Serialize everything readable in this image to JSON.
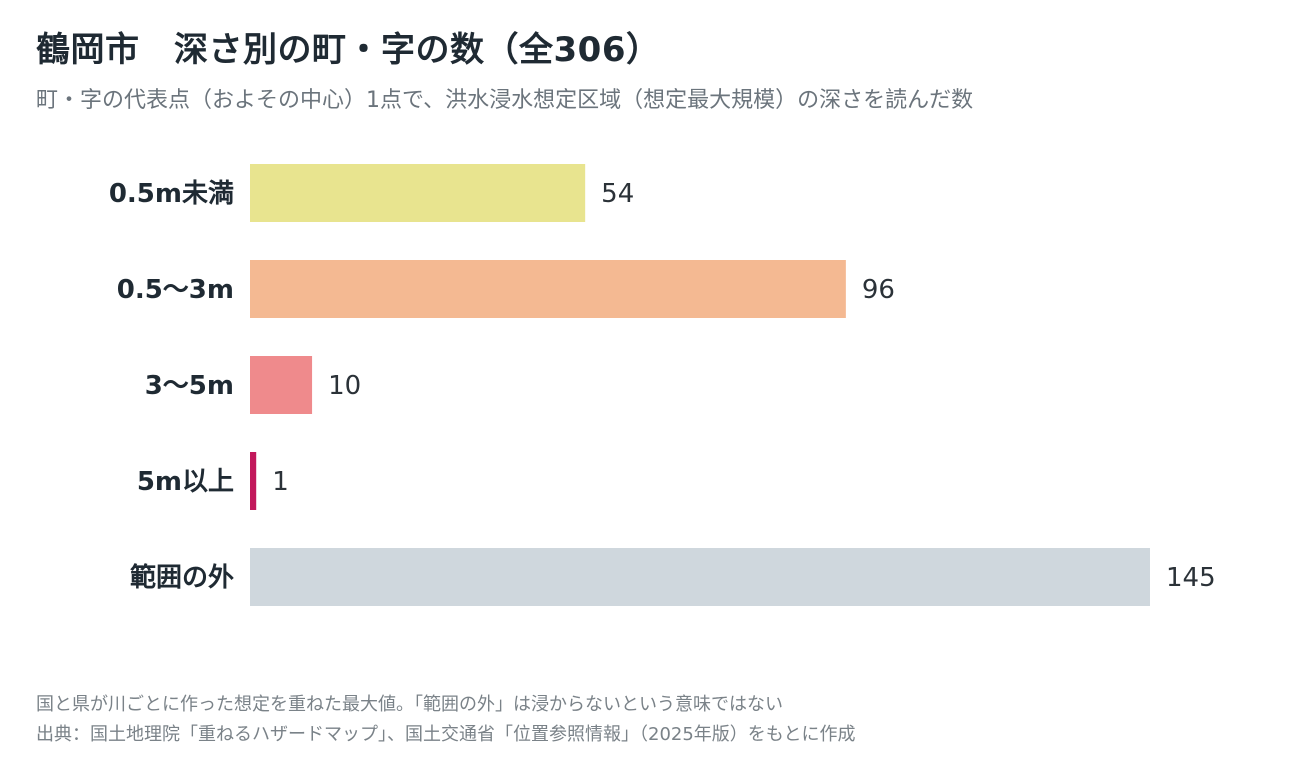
{
  "header": {
    "title": "鶴岡市　深さ別の町・字の数（全306）",
    "subtitle": "町・字の代表点（およその中心）1点で、洪水浸水想定区域（想定最大規模）の深さを読んだ数"
  },
  "footer": {
    "note": "国と県が川ごとに作った想定を重ねた最大値。「範囲の外」は浸からないという意味ではない",
    "source": "出典：国土地理院「重ねるハザードマップ」、国土交通省「位置参照情報」（2025年版）をもとに作成"
  },
  "chart_data": {
    "type": "bar",
    "orientation": "horizontal",
    "title": "鶴岡市　深さ別の町・字の数（全306）",
    "categories": [
      "0.5m未満",
      "0.5〜3m",
      "3〜5m",
      "5m以上",
      "範囲の外"
    ],
    "values": [
      54,
      96,
      10,
      1,
      145
    ],
    "colors": [
      "#e8e48f",
      "#f4b992",
      "#ef8a8c",
      "#c2185b",
      "#cfd7dd"
    ],
    "xlim": [
      0,
      145
    ],
    "grid": false,
    "legend": "none"
  }
}
